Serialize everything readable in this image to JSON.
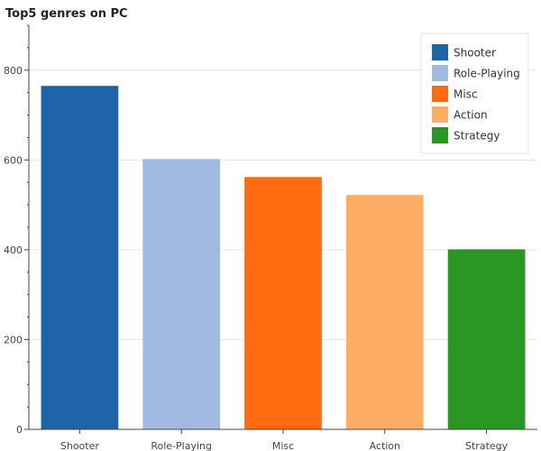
{
  "chart_data": {
    "type": "bar",
    "title": "Top5 genres on PC",
    "xlabel": "",
    "ylabel": "",
    "categories": [
      "Shooter",
      "Role-Playing",
      "Misc",
      "Action",
      "Strategy"
    ],
    "values": [
      765,
      602,
      562,
      522,
      401
    ],
    "colors": [
      "#1f63a8",
      "#a0bae2",
      "#fe6a10",
      "#ffac64",
      "#2a9623"
    ],
    "ylim": [
      0,
      900
    ],
    "yticks": [
      0,
      200,
      400,
      600,
      800
    ],
    "grid": true,
    "legend": {
      "placement": "top-right",
      "entries": [
        "Shooter",
        "Role-Playing",
        "Misc",
        "Action",
        "Strategy"
      ]
    }
  }
}
